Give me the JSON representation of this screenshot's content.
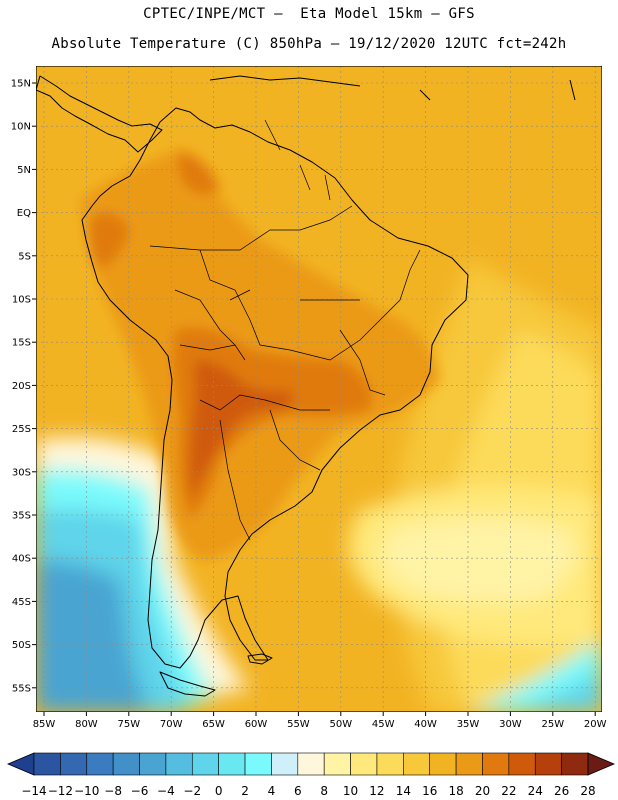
{
  "header": {
    "line1": "CPTEC/INPE/MCT –  Eta Model 15km – GFS",
    "line2": "Absolute Temperature (C) 850hPa – 19/12/2020 12UTC fct=242h"
  },
  "axes": {
    "lat_labels": [
      "15N",
      "10N",
      "5N",
      "EQ",
      "5S",
      "10S",
      "15S",
      "20S",
      "25S",
      "30S",
      "35S",
      "40S",
      "45S",
      "50S",
      "55S"
    ],
    "lon_labels": [
      "85W",
      "80W",
      "75W",
      "70W",
      "65W",
      "60W",
      "55W",
      "50W",
      "45W",
      "40W",
      "35W",
      "30W",
      "25W",
      "20W"
    ]
  },
  "colorbar": {
    "labels": [
      "-14",
      "-12",
      "-10",
      "-8",
      "-6",
      "-4",
      "-2",
      "0",
      "2",
      "4",
      "6",
      "8",
      "10",
      "12",
      "14",
      "16",
      "18",
      "20",
      "22",
      "24",
      "26",
      "28"
    ],
    "colors": [
      "#1f3f8f",
      "#2b55a0",
      "#3468b0",
      "#3b7bbf",
      "#4290c8",
      "#4aa4d2",
      "#55bde0",
      "#5fd4ea",
      "#6ae8f2",
      "#7afafc",
      "#cfeffa",
      "#fff7dc",
      "#fff3a6",
      "#ffe97c",
      "#fddb5a",
      "#f7c83a",
      "#f2b323",
      "#eb9a18",
      "#e07a0f",
      "#cf5a0c",
      "#b5400b",
      "#8e2a10",
      "#6b1a14"
    ]
  },
  "map_colors": {
    "ocean_warm": "#f2b323",
    "ocean_mild": "#f7c83a",
    "ocean_cool": "#fddb5a",
    "ocean_pale": "#ffe97c",
    "ocean_light": "#fff3a6",
    "cold_white": "#fff7dc",
    "cold_cyan": "#7afafc",
    "cold_blue": "#5fd4ea",
    "cold_deep": "#4aa4d2",
    "hot": "#eb9a18",
    "hotter": "#e07a0f",
    "hottest": "#cf5a0c"
  }
}
